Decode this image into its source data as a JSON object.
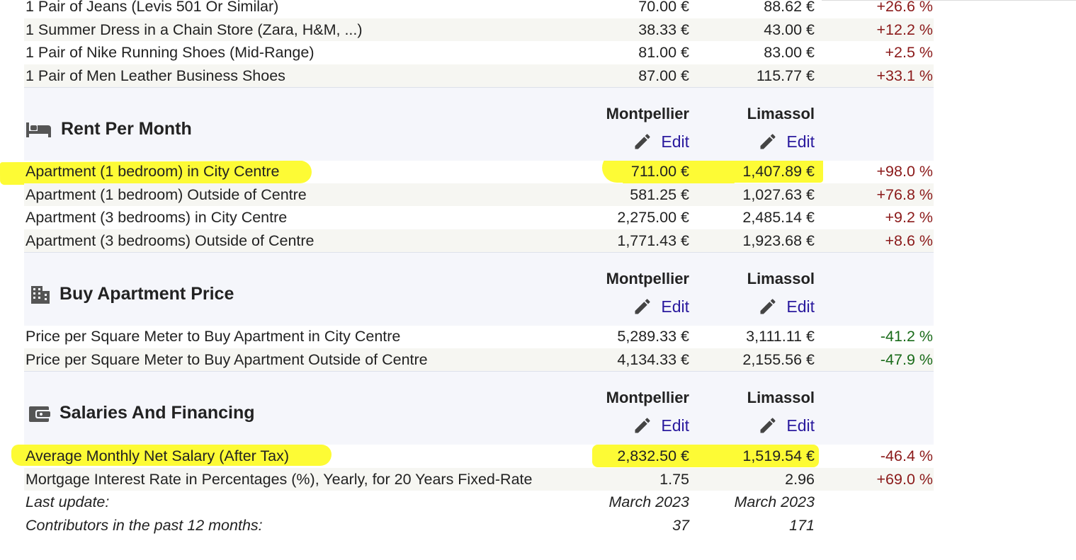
{
  "clothing": {
    "rows": [
      {
        "label": "1 Pair of Jeans (Levis 501 Or Similar)",
        "v1": "70.00 €",
        "v2": "88.62 €",
        "pct": "+26.6 %"
      },
      {
        "label": "1 Summer Dress in a Chain Store (Zara, H&M, ...)",
        "v1": "38.33 €",
        "v2": "43.00 €",
        "pct": "+12.2 %"
      },
      {
        "label": "1 Pair of Nike Running Shoes (Mid-Range)",
        "v1": "81.00 €",
        "v2": "83.00 €",
        "pct": "+2.5 %"
      },
      {
        "label": "1 Pair of Men Leather Business Shoes",
        "v1": "87.00 €",
        "v2": "115.77 €",
        "pct": "+33.1 %"
      }
    ]
  },
  "columns": {
    "city1": "Montpellier",
    "city2": "Limassol",
    "edit_label": "Edit"
  },
  "rent": {
    "title": "Rent Per Month",
    "icon": "bed-icon",
    "rows": [
      {
        "label": "Apartment (1 bedroom) in City Centre",
        "v1": "711.00 €",
        "v2": "1,407.89 €",
        "pct": "+98.0 %"
      },
      {
        "label": "Apartment (1 bedroom) Outside of Centre",
        "v1": "581.25 €",
        "v2": "1,027.63 €",
        "pct": "+76.8 %"
      },
      {
        "label": "Apartment (3 bedrooms) in City Centre",
        "v1": "2,275.00 €",
        "v2": "2,485.14 €",
        "pct": "+9.2 %"
      },
      {
        "label": "Apartment (3 bedrooms) Outside of Centre",
        "v1": "1,771.43 €",
        "v2": "1,923.68 €",
        "pct": "+8.6 %"
      }
    ]
  },
  "buy": {
    "title": "Buy Apartment Price",
    "icon": "building-icon",
    "rows": [
      {
        "label": "Price per Square Meter to Buy Apartment in City Centre",
        "v1": "5,289.33 €",
        "v2": "3,111.11 €",
        "pct": "-41.2 %"
      },
      {
        "label": "Price per Square Meter to Buy Apartment Outside of Centre",
        "v1": "4,134.33 €",
        "v2": "2,155.56 €",
        "pct": "-47.9 %"
      }
    ]
  },
  "salaries": {
    "title": "Salaries And Financing",
    "icon": "wallet-icon",
    "rows": [
      {
        "label": "Average Monthly Net Salary (After Tax)",
        "v1": "2,832.50 €",
        "v2": "1,519.54 €",
        "pct": "-46.4 %"
      },
      {
        "label": "Mortgage Interest Rate in Percentages (%), Yearly, for 20 Years Fixed-Rate",
        "v1": "1.75",
        "v2": "2.96",
        "pct": "+69.0 %"
      }
    ]
  },
  "footer": {
    "last_update_label": "Last update:",
    "last_update_1": "March 2023",
    "last_update_2": "March 2023",
    "contributors_label": "Contributors in the past 12 months:",
    "contributors_1": "37",
    "contributors_2": "171"
  },
  "colors": {
    "highlight": "#fdfb35",
    "positive": "#8b1a1a",
    "negative": "#1a6b1a",
    "link": "#2a1a9e"
  }
}
